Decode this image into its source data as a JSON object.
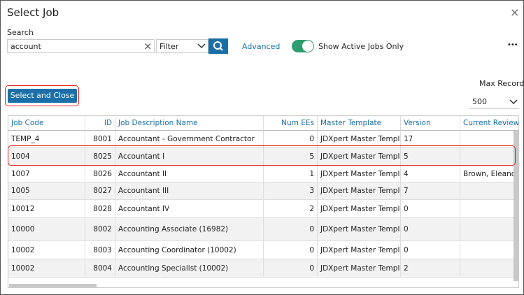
{
  "dialog": {
    "title": "Select Job",
    "close": "×",
    "search_label": "Search",
    "search_value": "account",
    "clear": "×",
    "filter": "Filter",
    "advanced": "Advanced",
    "toggle_label": "Show Active Jobs Only",
    "more": "•••",
    "max_records_label": "Max Records",
    "max_records": "500",
    "select_button": "Select and Close"
  },
  "table": {
    "columns": [
      "Job Code",
      "ID",
      "Job Description Name",
      "Num EEs",
      "Master Template",
      "Version",
      "Current Reviewe"
    ],
    "rows": [
      {
        "code": "TEMP_4",
        "id": "8001",
        "name": "Accountant - Government Contractor",
        "num": "0",
        "template": "JDXpert Master Template",
        "version": "17"
      },
      {
        "code": "1004",
        "id": "8025",
        "name": "Accountant I",
        "num": "5",
        "template": "JDXpert Master Template",
        "version": "5"
      },
      {
        "code": "1007",
        "id": "8026",
        "name": "Accountant II",
        "num": "1",
        "template": "JDXpert Master Template",
        "version": "4",
        "reviewer": "Brown, Eleanor"
      },
      {
        "code": "1005",
        "id": "8027",
        "name": "Accountant III",
        "num": "3",
        "template": "JDXpert Master Template",
        "version": "7"
      },
      {
        "code": "10012",
        "id": "8028",
        "name": "Accountant IV",
        "num": "2",
        "template": "JDXpert Master Template",
        "version": "0"
      },
      {
        "code": "10000",
        "id": "8002",
        "name": "Accounting Associate (16982)",
        "num": "0",
        "template": "JDXpert Master Template",
        "version": "0"
      },
      {
        "code": "10002",
        "id": "8003",
        "name": "Accounting Coordinator (10002)",
        "num": "0",
        "template": "JDXpert Master Template",
        "version": "0"
      },
      {
        "code": "10002",
        "id": "8004",
        "name": "Accounting Specialist (10002)",
        "num": "0",
        "template": "JDXpert Master Template",
        "version": "2"
      }
    ]
  }
}
